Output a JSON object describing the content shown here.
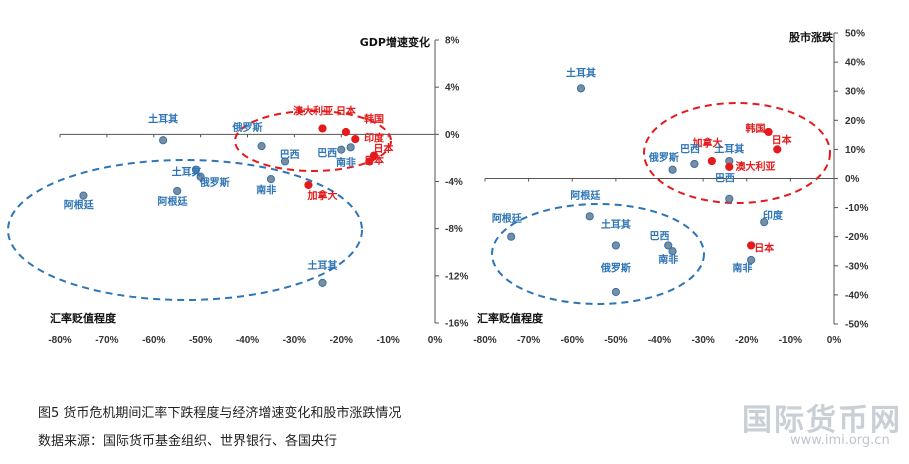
{
  "chart_data": [
    {
      "type": "scatter",
      "ylabel": "GDP增速变化",
      "xlabel": "汇率贬值程度",
      "xlim": [
        -0.8,
        0
      ],
      "ylim": [
        -0.16,
        0.08
      ],
      "x_ticks": [
        "-80%",
        "-70%",
        "-60%",
        "-50%",
        "-40%",
        "-30%",
        "-20%",
        "-10%",
        "0%"
      ],
      "y_ticks": [
        "8%",
        "4%",
        "0%",
        "-4%",
        "-8%",
        "-12%",
        "-16%"
      ],
      "grid": false,
      "series": [
        {
          "color": "#2e75b6",
          "points": [
            {
              "label": "土耳其",
              "x": -0.58,
              "y": -0.005
            },
            {
              "label": "俄罗斯",
              "x": -0.37,
              "y": -0.01
            },
            {
              "label": "巴西",
              "x": -0.32,
              "y": -0.023
            },
            {
              "label": "巴西",
              "x": -0.2,
              "y": -0.013
            },
            {
              "label": "南非",
              "x": -0.18,
              "y": -0.011
            },
            {
              "label": "土耳其",
              "x": -0.51,
              "y": -0.03
            },
            {
              "label": "阿根廷",
              "x": -0.55,
              "y": -0.048
            },
            {
              "label": "俄罗斯",
              "x": -0.5,
              "y": -0.036
            },
            {
              "label": "南非",
              "x": -0.35,
              "y": -0.038
            },
            {
              "label": "阿根廷",
              "x": -0.75,
              "y": -0.052
            },
            {
              "label": "土耳其",
              "x": -0.24,
              "y": -0.126
            }
          ]
        },
        {
          "color": "#e41a1c",
          "points": [
            {
              "label": "澳大利亚",
              "x": -0.24,
              "y": 0.005
            },
            {
              "label": "日本",
              "x": -0.19,
              "y": 0.002
            },
            {
              "label": "韩国",
              "x": -0.17,
              "y": -0.004
            },
            {
              "label": "印度",
              "x": -0.13,
              "y": -0.018
            },
            {
              "label": "日本",
              "x": -0.14,
              "y": -0.023
            },
            {
              "label": "加拿大",
              "x": -0.27,
              "y": -0.043
            }
          ]
        }
      ],
      "annotations": [
        {
          "label": "土耳其",
          "x": -0.58,
          "y": 0.01
        },
        {
          "label": "俄罗斯",
          "x": -0.4,
          "y": 0.003
        },
        {
          "label": "澳大利亚",
          "x": -0.26,
          "y": 0.017
        },
        {
          "label": "日本",
          "x": -0.19,
          "y": 0.017
        },
        {
          "label": "韩国",
          "x": -0.13,
          "y": 0.01
        },
        {
          "label": "巴西",
          "x": -0.31,
          "y": -0.02
        },
        {
          "label": "巴西",
          "x": -0.23,
          "y": -0.019
        },
        {
          "label": "印度",
          "x": -0.13,
          "y": -0.006
        },
        {
          "label": "日本",
          "x": -0.11,
          "y": -0.015
        },
        {
          "label": "日本",
          "x": -0.13,
          "y": -0.025
        },
        {
          "label": "南非",
          "x": -0.19,
          "y": -0.027
        },
        {
          "label": "土耳其",
          "x": -0.53,
          "y": -0.035
        },
        {
          "label": "俄罗斯",
          "x": -0.47,
          "y": -0.044
        },
        {
          "label": "阿根廷",
          "x": -0.56,
          "y": -0.06
        },
        {
          "label": "阿根廷",
          "x": -0.76,
          "y": -0.063
        },
        {
          "label": "南非",
          "x": -0.36,
          "y": -0.05
        },
        {
          "label": "加拿大",
          "x": -0.24,
          "y": -0.055
        },
        {
          "label": "土耳其",
          "x": -0.24,
          "y": -0.114
        }
      ]
    },
    {
      "type": "scatter",
      "ylabel": "股市涨跌",
      "xlabel": "汇率贬值程度",
      "xlim": [
        -0.8,
        0
      ],
      "ylim": [
        -0.5,
        0.5
      ],
      "x_ticks": [
        "-80%",
        "-70%",
        "-60%",
        "-50%",
        "-40%",
        "-30%",
        "-20%",
        "-10%",
        "0%"
      ],
      "y_ticks": [
        "50%",
        "40%",
        "30%",
        "20%",
        "10%",
        "0%",
        "-10%",
        "-20%",
        "-30%",
        "-40%",
        "-50%"
      ],
      "grid": false,
      "series": [
        {
          "color": "#2e75b6",
          "points": [
            {
              "label": "土耳其",
              "x": -0.58,
              "y": 0.31
            },
            {
              "label": "俄罗斯",
              "x": -0.37,
              "y": 0.03
            },
            {
              "label": "巴西",
              "x": -0.32,
              "y": 0.05
            },
            {
              "label": "土耳其",
              "x": -0.24,
              "y": 0.06
            },
            {
              "label": "巴西",
              "x": -0.24,
              "y": -0.07
            },
            {
              "label": "阿根廷",
              "x": -0.74,
              "y": -0.2
            },
            {
              "label": "阿根廷",
              "x": -0.56,
              "y": -0.13
            },
            {
              "label": "土耳其",
              "x": -0.5,
              "y": -0.23
            },
            {
              "label": "巴西",
              "x": -0.38,
              "y": -0.23
            },
            {
              "label": "南非",
              "x": -0.37,
              "y": -0.25
            },
            {
              "label": "俄罗斯",
              "x": -0.5,
              "y": -0.39
            },
            {
              "label": "印度",
              "x": -0.16,
              "y": -0.15
            },
            {
              "label": "南非",
              "x": -0.19,
              "y": -0.28
            }
          ]
        },
        {
          "color": "#e41a1c",
          "points": [
            {
              "label": "加拿大",
              "x": -0.28,
              "y": 0.06
            },
            {
              "label": "澳大利亚",
              "x": -0.24,
              "y": 0.04
            },
            {
              "label": "韩国",
              "x": -0.15,
              "y": 0.16
            },
            {
              "label": "日本",
              "x": -0.13,
              "y": 0.1
            },
            {
              "label": "日本",
              "x": -0.19,
              "y": -0.23
            }
          ]
        }
      ],
      "annotations": [
        {
          "label": "土耳其",
          "x": -0.58,
          "y": 0.35
        },
        {
          "label": "加拿大",
          "x": -0.29,
          "y": 0.11
        },
        {
          "label": "韩国",
          "x": -0.18,
          "y": 0.16
        },
        {
          "label": "日本",
          "x": -0.12,
          "y": 0.12
        },
        {
          "label": "巴西",
          "x": -0.33,
          "y": 0.09
        },
        {
          "label": "土耳其",
          "x": -0.24,
          "y": 0.09
        },
        {
          "label": "俄罗斯",
          "x": -0.39,
          "y": 0.06
        },
        {
          "label": "澳大利亚",
          "x": -0.18,
          "y": 0.03
        },
        {
          "label": "巴西",
          "x": -0.25,
          "y": -0.01
        },
        {
          "label": "阿根廷",
          "x": -0.57,
          "y": -0.07
        },
        {
          "label": "阿根廷",
          "x": -0.75,
          "y": -0.15
        },
        {
          "label": "土耳其",
          "x": -0.5,
          "y": -0.17
        },
        {
          "label": "巴西",
          "x": -0.4,
          "y": -0.21
        },
        {
          "label": "南非",
          "x": -0.38,
          "y": -0.29
        },
        {
          "label": "印度",
          "x": -0.14,
          "y": -0.14
        },
        {
          "label": "日本",
          "x": -0.16,
          "y": -0.25
        },
        {
          "label": "南非",
          "x": -0.21,
          "y": -0.32
        },
        {
          "label": "俄罗斯",
          "x": -0.5,
          "y": -0.32
        }
      ]
    }
  ],
  "captions": {
    "figure": "图5  货币危机期间汇率下跌程度与经济增速变化和股市涨跌情况",
    "source": "数据来源：国际货币基金组织、世界银行、各国央行"
  },
  "watermark": {
    "text": "国际货币网",
    "url": "www.imi.org.cn"
  }
}
